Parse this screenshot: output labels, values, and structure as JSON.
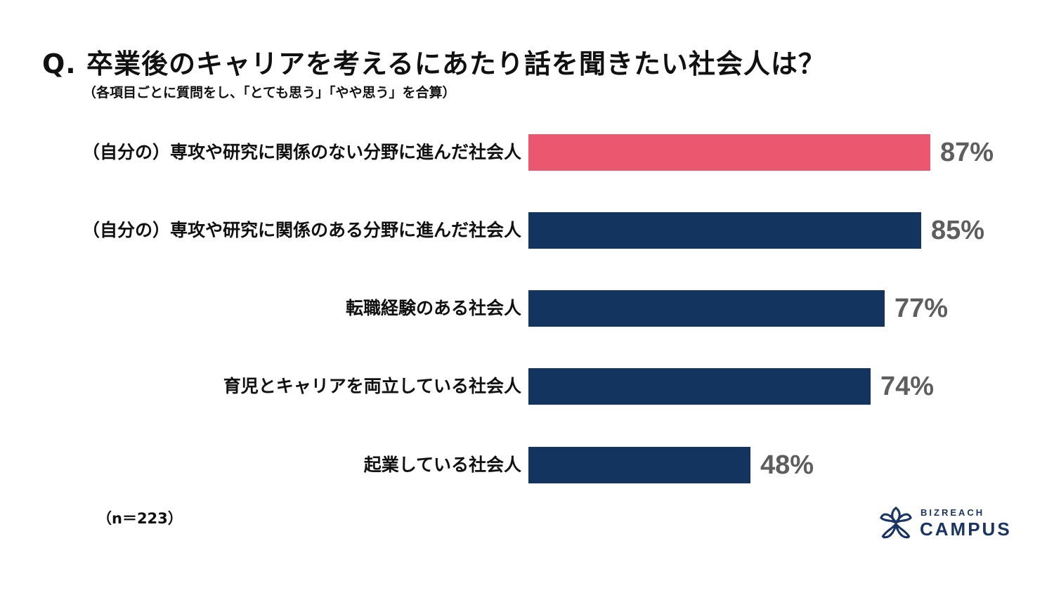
{
  "header": {
    "title": "Q.  卒業後のキャリアを考えるにあたり話を聞きたい社会人は？",
    "subtitle": "（各項目ごとに質問をし、「とても思う」「やや思う」を合算）"
  },
  "footer": {
    "sample_note": "（n＝223）",
    "logo_top": "BIZREACH",
    "logo_bottom": "CAMPUS"
  },
  "colors": {
    "highlight": "#ec5770",
    "primary": "#13345e",
    "value_text": "#5e5e5e",
    "logo": "#1a3563"
  },
  "chart_data": {
    "type": "bar",
    "orientation": "horizontal",
    "title": "Q. 卒業後のキャリアを考えるにあたり話を聞きたい社会人は？",
    "subtitle": "（各項目ごとに質問をし、「とても思う」「やや思う」を合算）",
    "categories": [
      "（自分の）専攻や研究に関係のない分野に進んだ社会人",
      "（自分の）専攻や研究に関係のある分野に進んだ社会人",
      "転職経験のある社会人",
      "育児とキャリアを両立している社会人",
      "起業している社会人"
    ],
    "values": [
      87,
      85,
      77,
      74,
      48
    ],
    "value_labels": [
      "87%",
      "85%",
      "77%",
      "74%",
      "48%"
    ],
    "unit": "%",
    "xlabel": "",
    "ylabel": "",
    "xlim": [
      0,
      100
    ],
    "grid": false,
    "legend": null,
    "annotations": [
      "（n＝223）"
    ]
  }
}
